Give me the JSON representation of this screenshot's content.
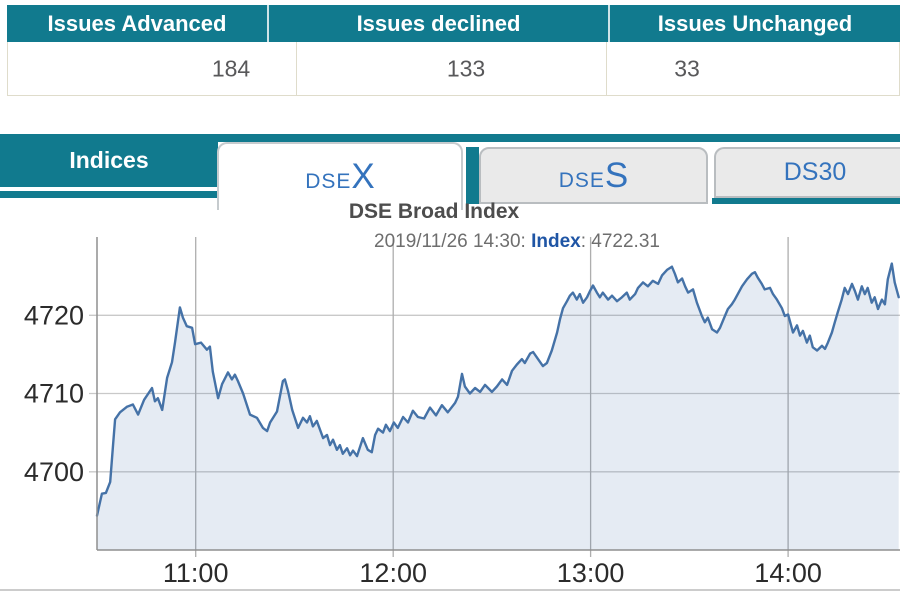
{
  "colors": {
    "accent": "#117a8e",
    "tab_text": "#3473bd",
    "line": "#4572a7",
    "fill": "rgba(69,114,167,0.14)"
  },
  "summary_table": {
    "columns": [
      {
        "header": "Issues Advanced",
        "value": "184"
      },
      {
        "header": "Issues declined",
        "value": "133"
      },
      {
        "header": "Issues Unchanged",
        "value": "33"
      }
    ]
  },
  "tabs_bar": {
    "section_label": "Indices",
    "tabs": [
      {
        "small": "DSE",
        "large": "X",
        "active": true
      },
      {
        "small": "DSE",
        "large": "S",
        "active": false
      },
      {
        "small": "DS30",
        "large": "",
        "active": false
      }
    ]
  },
  "chart": {
    "title": "DSE Broad Index",
    "subtitle": {
      "prefix": "2019/11/26 14:30: ",
      "label": "Index",
      "separator": ": ",
      "value": "4722.31"
    }
  },
  "chart_data": {
    "type": "area",
    "title": "DSE Broad Index",
    "subtitle": "2019/11/26 14:30: Index: 4722.31",
    "series_name": "DSEX Index",
    "x_start_time": "10:30",
    "x_tick_labels": [
      "11:00",
      "12:00",
      "13:00",
      "14:00"
    ],
    "x_tick_minutes": [
      30,
      90,
      150,
      210
    ],
    "x_range_minutes": [
      0,
      244
    ],
    "ylim": [
      4690,
      4730
    ],
    "y_ticks": [
      4700,
      4710,
      4720
    ],
    "grid": true,
    "legend": false,
    "last_value": 4722.31,
    "series": [
      {
        "name": "Index",
        "points": [
          [
            0,
            4694.4
          ],
          [
            1.5,
            4697.2
          ],
          [
            2.7,
            4697.3
          ],
          [
            4,
            4698.7
          ],
          [
            4.9,
            4703.5
          ],
          [
            5.5,
            4706.7
          ],
          [
            7,
            4707.6
          ],
          [
            9.1,
            4708.3
          ],
          [
            10.9,
            4708.6
          ],
          [
            12.5,
            4707.3
          ],
          [
            14.3,
            4709.2
          ],
          [
            16.7,
            4710.7
          ],
          [
            17.6,
            4709
          ],
          [
            18.5,
            4709.4
          ],
          [
            19.8,
            4707.9
          ],
          [
            21.3,
            4712
          ],
          [
            22.8,
            4714
          ],
          [
            23.7,
            4716.5
          ],
          [
            25.2,
            4721
          ],
          [
            26.1,
            4719.7
          ],
          [
            27.3,
            4718.6
          ],
          [
            28.9,
            4718.4
          ],
          [
            29.8,
            4716.3
          ],
          [
            31.6,
            4716.5
          ],
          [
            33.4,
            4715.6
          ],
          [
            34.3,
            4716
          ],
          [
            35.2,
            4712.8
          ],
          [
            36.8,
            4709.4
          ],
          [
            38,
            4711.2
          ],
          [
            39.8,
            4712.7
          ],
          [
            41,
            4711.8
          ],
          [
            41.9,
            4712.4
          ],
          [
            42.8,
            4711.6
          ],
          [
            44.4,
            4710
          ],
          [
            46.5,
            4707.3
          ],
          [
            48.6,
            4706.9
          ],
          [
            50.4,
            4705.6
          ],
          [
            51.7,
            4705.2
          ],
          [
            52.6,
            4706.3
          ],
          [
            54.7,
            4707.7
          ],
          [
            56.5,
            4711.6
          ],
          [
            57.1,
            4711.8
          ],
          [
            58,
            4710.4
          ],
          [
            59.3,
            4707.9
          ],
          [
            61.1,
            4705.6
          ],
          [
            62.6,
            4706.9
          ],
          [
            63.8,
            4706.3
          ],
          [
            64.7,
            4707.1
          ],
          [
            65.6,
            4705.8
          ],
          [
            66.8,
            4706.5
          ],
          [
            68.7,
            4704.3
          ],
          [
            69.9,
            4704.7
          ],
          [
            70.8,
            4703.4
          ],
          [
            71.7,
            4704.1
          ],
          [
            72.9,
            4702.8
          ],
          [
            73.8,
            4703.4
          ],
          [
            74.7,
            4702.3
          ],
          [
            76,
            4703
          ],
          [
            76.9,
            4702.1
          ],
          [
            77.8,
            4702.7
          ],
          [
            79,
            4702
          ],
          [
            80.8,
            4704.3
          ],
          [
            82.3,
            4702.8
          ],
          [
            83.5,
            4702.5
          ],
          [
            84.5,
            4704.7
          ],
          [
            85.4,
            4705.5
          ],
          [
            86.9,
            4705
          ],
          [
            87.8,
            4706
          ],
          [
            89,
            4705.2
          ],
          [
            90.2,
            4706.3
          ],
          [
            91.4,
            4705.6
          ],
          [
            93,
            4707
          ],
          [
            94.5,
            4706.3
          ],
          [
            96,
            4707.8
          ],
          [
            97.5,
            4707
          ],
          [
            99.4,
            4706.8
          ],
          [
            101.2,
            4708.2
          ],
          [
            103,
            4707.2
          ],
          [
            104.8,
            4708.5
          ],
          [
            106.6,
            4707.6
          ],
          [
            108.8,
            4708.8
          ],
          [
            109.7,
            4709.6
          ],
          [
            110.9,
            4712.5
          ],
          [
            111.8,
            4710.9
          ],
          [
            113.3,
            4710
          ],
          [
            114.9,
            4710.7
          ],
          [
            116.4,
            4710.2
          ],
          [
            117.9,
            4711.1
          ],
          [
            120,
            4710.2
          ],
          [
            121.5,
            4710.9
          ],
          [
            123.1,
            4711.8
          ],
          [
            124.6,
            4711.1
          ],
          [
            126.1,
            4712.9
          ],
          [
            127.6,
            4713.7
          ],
          [
            129.1,
            4714.4
          ],
          [
            130,
            4713.9
          ],
          [
            131.6,
            4715.1
          ],
          [
            132.5,
            4715.3
          ],
          [
            134,
            4714.4
          ],
          [
            135.5,
            4713.5
          ],
          [
            136.7,
            4713.9
          ],
          [
            138.2,
            4715.5
          ],
          [
            139.8,
            4717.8
          ],
          [
            140.7,
            4719.5
          ],
          [
            141.6,
            4720.9
          ],
          [
            142.8,
            4721.8
          ],
          [
            143.7,
            4722.5
          ],
          [
            144.6,
            4722.9
          ],
          [
            145.8,
            4722
          ],
          [
            146.7,
            4722.7
          ],
          [
            147.7,
            4721.6
          ],
          [
            148.9,
            4722.3
          ],
          [
            149.8,
            4723.1
          ],
          [
            150.7,
            4723.8
          ],
          [
            151.9,
            4722.9
          ],
          [
            152.8,
            4722.3
          ],
          [
            153.7,
            4722.9
          ],
          [
            155.3,
            4722
          ],
          [
            156.5,
            4722.5
          ],
          [
            158,
            4721.8
          ],
          [
            159.5,
            4722.3
          ],
          [
            161,
            4722.9
          ],
          [
            161.9,
            4722
          ],
          [
            163.5,
            4722.7
          ],
          [
            164.4,
            4723.5
          ],
          [
            165.9,
            4724.2
          ],
          [
            167.4,
            4723.7
          ],
          [
            168.9,
            4724.4
          ],
          [
            170.5,
            4724
          ],
          [
            171.7,
            4725.1
          ],
          [
            173.2,
            4725.8
          ],
          [
            174.7,
            4726.2
          ],
          [
            175.6,
            4725.3
          ],
          [
            176.5,
            4724.2
          ],
          [
            177.8,
            4724.7
          ],
          [
            178.7,
            4723.7
          ],
          [
            179.6,
            4722.9
          ],
          [
            181.1,
            4723.3
          ],
          [
            182.3,
            4721.6
          ],
          [
            183.8,
            4719.9
          ],
          [
            184.7,
            4719.1
          ],
          [
            185.6,
            4719.7
          ],
          [
            186.9,
            4718.2
          ],
          [
            188.4,
            4717.8
          ],
          [
            189.3,
            4718.4
          ],
          [
            190.8,
            4719.9
          ],
          [
            191.7,
            4720.8
          ],
          [
            192.9,
            4721.4
          ],
          [
            193.8,
            4722
          ],
          [
            194.7,
            4722.7
          ],
          [
            196,
            4723.7
          ],
          [
            197.5,
            4724.6
          ],
          [
            199,
            4725.3
          ],
          [
            199.9,
            4725.5
          ],
          [
            200.8,
            4724.8
          ],
          [
            202,
            4724
          ],
          [
            202.9,
            4723.3
          ],
          [
            204.5,
            4723.5
          ],
          [
            205.4,
            4722.7
          ],
          [
            206.6,
            4722
          ],
          [
            208.1,
            4720.9
          ],
          [
            209,
            4719.9
          ],
          [
            210,
            4720.1
          ],
          [
            211.5,
            4717.8
          ],
          [
            212.7,
            4718.7
          ],
          [
            213.6,
            4717.4
          ],
          [
            214.5,
            4718
          ],
          [
            215.7,
            4716.5
          ],
          [
            216.6,
            4717.4
          ],
          [
            217.5,
            4715.9
          ],
          [
            218.8,
            4715.5
          ],
          [
            220.3,
            4716.1
          ],
          [
            221.2,
            4715.7
          ],
          [
            222.1,
            4716.5
          ],
          [
            223.3,
            4717.8
          ],
          [
            224.2,
            4719.1
          ],
          [
            225.1,
            4720.4
          ],
          [
            226.3,
            4722
          ],
          [
            227.2,
            4723.5
          ],
          [
            228.2,
            4722.7
          ],
          [
            229.4,
            4724
          ],
          [
            230.3,
            4723.1
          ],
          [
            231.2,
            4722
          ],
          [
            232.4,
            4723.7
          ],
          [
            233.3,
            4722.7
          ],
          [
            234.2,
            4723.5
          ],
          [
            235.4,
            4721.6
          ],
          [
            236.3,
            4722.3
          ],
          [
            237.3,
            4720.8
          ],
          [
            238.5,
            4722
          ],
          [
            239.4,
            4721.4
          ],
          [
            240.3,
            4724.6
          ],
          [
            241.5,
            4726.6
          ],
          [
            242.4,
            4724.2
          ],
          [
            243.6,
            4722.31
          ]
        ]
      }
    ],
    "colors": {
      "line": "#4572a7",
      "fill": "rgba(69,114,167,0.14)"
    }
  }
}
